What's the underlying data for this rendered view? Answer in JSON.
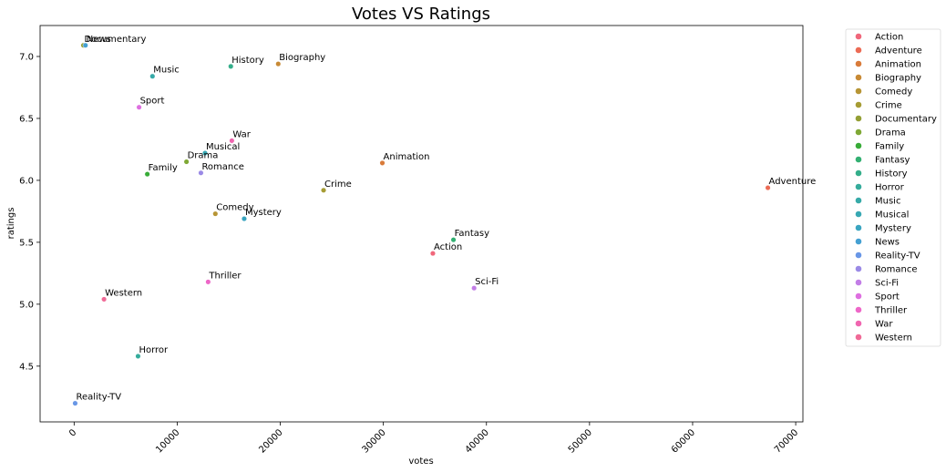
{
  "chart_data": {
    "type": "scatter",
    "title": "Votes VS Ratings",
    "xlabel": "votes",
    "ylabel": "ratings",
    "xlim": [
      -3300,
      70700
    ],
    "ylim": [
      4.05,
      7.25
    ],
    "xticks": [
      0,
      10000,
      20000,
      30000,
      40000,
      50000,
      60000,
      70000
    ],
    "yticks": [
      4.5,
      5.0,
      5.5,
      6.0,
      6.5,
      7.0
    ],
    "xtick_labels": [
      "0",
      "10000",
      "20000",
      "30000",
      "40000",
      "50000",
      "60000",
      "70000"
    ],
    "ytick_labels": [
      "4.5",
      "5.0",
      "5.5",
      "6.0",
      "6.5",
      "7.0"
    ],
    "grid": false,
    "legend_position": "outside-right",
    "series": [
      {
        "name": "Action",
        "x": 34800,
        "y": 5.41,
        "color": "#f0677b"
      },
      {
        "name": "Adventure",
        "x": 67300,
        "y": 5.94,
        "color": "#ec6b55"
      },
      {
        "name": "Animation",
        "x": 29900,
        "y": 6.14,
        "color": "#d97b3a"
      },
      {
        "name": "Biography",
        "x": 19800,
        "y": 6.94,
        "color": "#c88a35"
      },
      {
        "name": "Comedy",
        "x": 13700,
        "y": 5.73,
        "color": "#b79535"
      },
      {
        "name": "Crime",
        "x": 24200,
        "y": 5.92,
        "color": "#a69c34"
      },
      {
        "name": "Documentary",
        "x": 900,
        "y": 7.09,
        "color": "#949f35"
      },
      {
        "name": "Drama",
        "x": 10900,
        "y": 6.15,
        "color": "#7fa835"
      },
      {
        "name": "Family",
        "x": 7100,
        "y": 6.05,
        "color": "#38ac38"
      },
      {
        "name": "Fantasy",
        "x": 36800,
        "y": 5.52,
        "color": "#33b072"
      },
      {
        "name": "History",
        "x": 15200,
        "y": 6.92,
        "color": "#34ae8a"
      },
      {
        "name": "Horror",
        "x": 6200,
        "y": 4.58,
        "color": "#35ac9c"
      },
      {
        "name": "Music",
        "x": 7600,
        "y": 6.84,
        "color": "#36aaa8"
      },
      {
        "name": "Musical",
        "x": 12700,
        "y": 6.22,
        "color": "#38a8b3"
      },
      {
        "name": "Mystery",
        "x": 16500,
        "y": 5.69,
        "color": "#3aa5c0"
      },
      {
        "name": "News",
        "x": 1100,
        "y": 7.09,
        "color": "#45a0d2"
      },
      {
        "name": "Reality-TV",
        "x": 100,
        "y": 4.2,
        "color": "#6997e6"
      },
      {
        "name": "Romance",
        "x": 12300,
        "y": 6.06,
        "color": "#9b8ae6"
      },
      {
        "name": "Sci-Fi",
        "x": 38800,
        "y": 5.13,
        "color": "#c27de6"
      },
      {
        "name": "Sport",
        "x": 6300,
        "y": 6.59,
        "color": "#de6fe0"
      },
      {
        "name": "Thriller",
        "x": 13000,
        "y": 5.18,
        "color": "#ee67c8"
      },
      {
        "name": "War",
        "x": 15300,
        "y": 6.32,
        "color": "#f066b0"
      },
      {
        "name": "Western",
        "x": 2900,
        "y": 5.04,
        "color": "#f06a97"
      }
    ]
  }
}
